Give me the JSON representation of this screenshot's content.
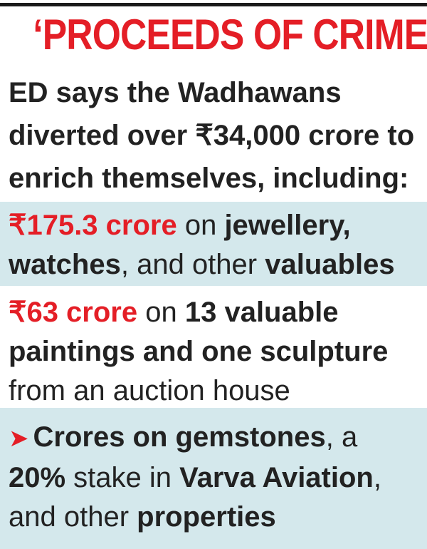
{
  "title": "‘PROCEEDS OF CRIME’",
  "intro": {
    "line1": "ED says the Wadhawans",
    "line2": "diverted over ₹34,000 crore to",
    "line3": "enrich themselves, including:"
  },
  "item1": {
    "amount": "₹175.3 crore",
    "t1": " on ",
    "b1": "jewellery,",
    "b2": "watches",
    "t2": ", and other ",
    "b3": "valuables"
  },
  "item2": {
    "amount": "₹63 crore",
    "t1": " on ",
    "b1": "13 valuable",
    "b2": "paintings and one sculpture",
    "t2": "from an auction house"
  },
  "item3": {
    "arrow": "➤",
    "b1": "Crores on gemstones",
    "t1": ", a",
    "b2": "20%",
    "t2": " stake in ",
    "b3": "Varva Aviation",
    "t3": ",",
    "t4": "and other ",
    "b4": "properties"
  },
  "colors": {
    "accent_red": "#e41e26",
    "band_tint": "#d4e8ec",
    "text": "#222222"
  },
  "icons": {
    "bullet": "arrow-right-icon"
  }
}
